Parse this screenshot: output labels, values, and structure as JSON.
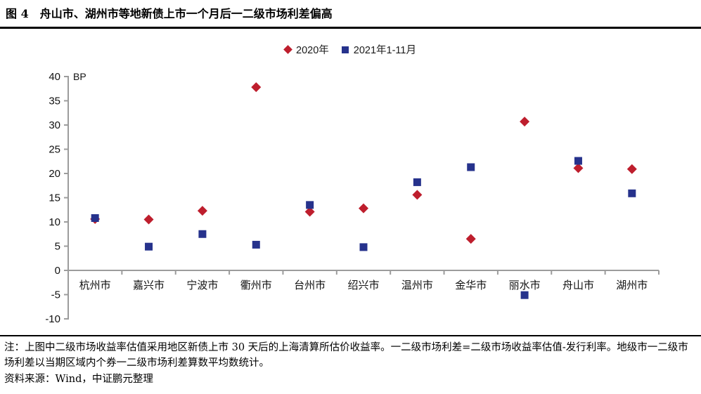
{
  "title": "图 4　舟山市、湖州市等地新债上市一个月后一二级市场利差偏高",
  "chart_data": {
    "type": "scatter",
    "title": "舟山市、湖州市等地新债上市一个月后一二级市场利差偏高",
    "unit_label": "BP",
    "xlabel": "",
    "ylabel": "BP",
    "ylim": [
      -10,
      40
    ],
    "ytick_step": 5,
    "grid": false,
    "legend_position": "top-center",
    "categories": [
      "杭州市",
      "嘉兴市",
      "宁波市",
      "衢州市",
      "台州市",
      "绍兴市",
      "温州市",
      "金华市",
      "丽水市",
      "舟山市",
      "湖州市"
    ],
    "series": [
      {
        "name": "2020年",
        "marker": "diamond",
        "color": "#BE1E2D",
        "values": [
          10.6,
          10.5,
          12.3,
          37.8,
          12.1,
          12.8,
          15.6,
          6.5,
          30.7,
          21.1,
          20.9
        ]
      },
      {
        "name": "2021年1-11月",
        "marker": "square",
        "color": "#26328C",
        "values": [
          10.8,
          4.9,
          7.5,
          5.3,
          13.5,
          4.8,
          18.2,
          21.3,
          -5.1,
          22.6,
          15.9
        ]
      }
    ],
    "axis_color": "#9c9c9c"
  },
  "notes": {
    "note": "注：上图中二级市场收益率估值采用地区新债上市 30 天后的上海清算所估价收益率。一二级市场利差=二级市场收益率估值-发行利率。地级市一二级市场利差以当期区域内个券一二级市场利差算数平均数统计。",
    "source": "资料来源：Wind，中证鹏元整理"
  }
}
